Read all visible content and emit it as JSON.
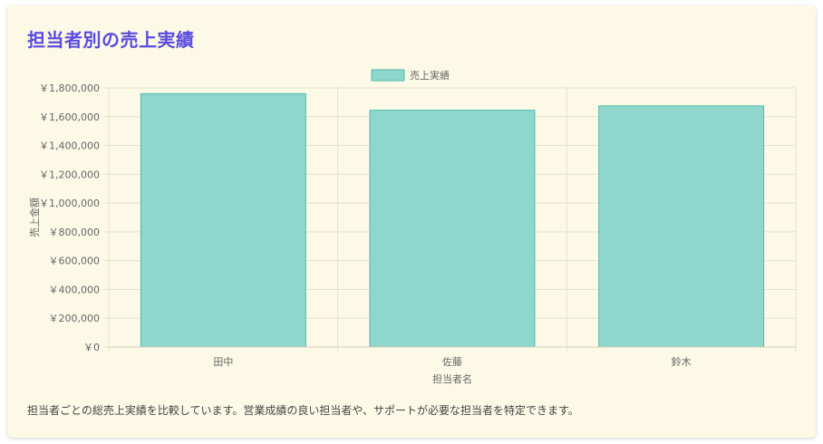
{
  "page": {
    "title": "担当者別の売上実績",
    "description": "担当者ごとの総売上実績を比較しています。営業成績の良い担当者や、サポートが必要な担当者を特定できます。"
  },
  "colors": {
    "title": "#5b4be0",
    "bar_fill": "#8fd6cd",
    "bar_stroke": "#4dbcad",
    "grid": "#e6e2cf",
    "axis_text": "#666666",
    "card_bg": "#fdf9e7"
  },
  "chart_data": {
    "type": "bar",
    "categories": [
      "田中",
      "佐藤",
      "鈴木"
    ],
    "series": [
      {
        "name": "売上実績",
        "values": [
          1760000,
          1645000,
          1675000
        ]
      }
    ],
    "xlabel": "担当者名",
    "ylabel": "売上金額",
    "ylim": [
      0,
      1800000
    ],
    "yticks": [
      0,
      200000,
      400000,
      600000,
      800000,
      1000000,
      1200000,
      1400000,
      1600000,
      1800000
    ],
    "ytick_labels": [
      "￥0",
      "￥200,000",
      "￥400,000",
      "￥600,000",
      "￥800,000",
      "￥1,000,000",
      "￥1,200,000",
      "￥1,400,000",
      "￥1,600,000",
      "￥1,800,000"
    ],
    "grid": true,
    "legend": "top-center"
  }
}
